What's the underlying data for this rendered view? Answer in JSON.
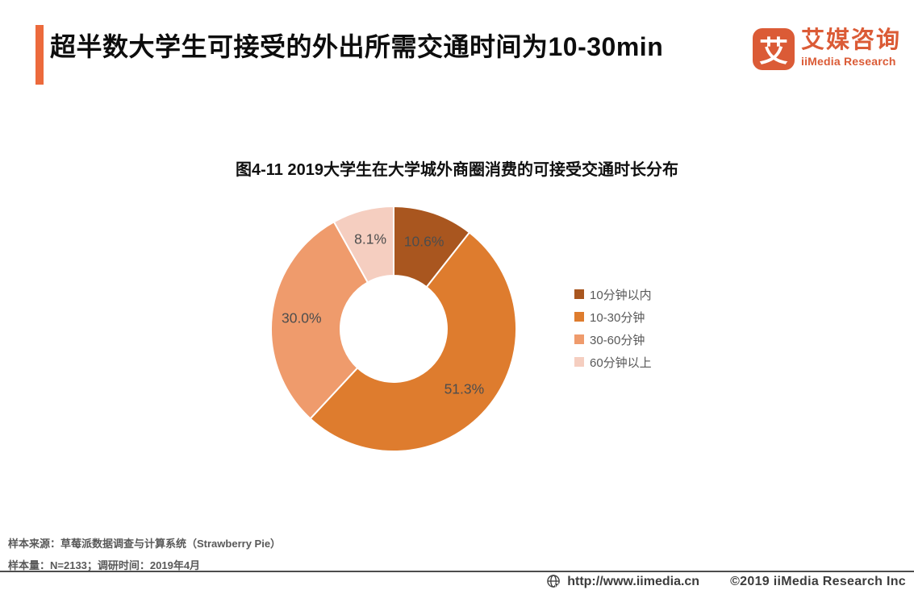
{
  "header": {
    "title": "超半数大学生可接受的外出所需交通时间为10-30min",
    "accent_color": "#EC6A3C",
    "logo": {
      "icon_char": "艾",
      "brand_cn": "艾媒咨询",
      "brand_en": "iiMedia Research",
      "color": "#DB5B36"
    }
  },
  "chart_data": {
    "type": "pie",
    "donut": true,
    "title": "图4-11 2019大学生在大学城外商圈消费的可接受交通时长分布",
    "categories": [
      "10分钟以内",
      "10-30分钟",
      "30-60分钟",
      "60分钟以上"
    ],
    "values": [
      10.6,
      51.3,
      30.0,
      8.1
    ],
    "labels": [
      "10.6%",
      "51.3%",
      "30.0%",
      "8.1%"
    ],
    "colors": [
      "#A9561F",
      "#DE7C2E",
      "#EF9B6C",
      "#F5CEC0"
    ],
    "label_color": "#4D4D4D",
    "start_angle_deg": 0,
    "direction": "clockwise",
    "legend_position": "right",
    "slice_border_color": "#ffffff"
  },
  "footer": {
    "source_line": "样本来源：草莓派数据调查与计算系统（Strawberry Pie）",
    "sample_line": "样本量：N=2133；调研时间：2019年4月"
  },
  "bottom_bar": {
    "url": "http://www.iimedia.cn",
    "copyright": "©2019  iiMedia Research  Inc"
  }
}
